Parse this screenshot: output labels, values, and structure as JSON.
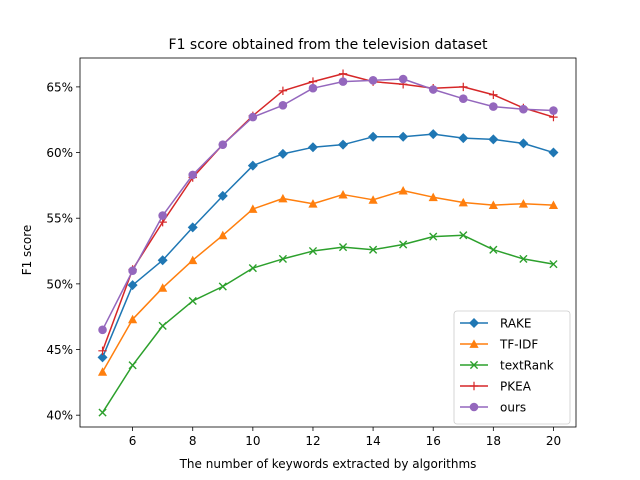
{
  "chart_data": {
    "type": "line",
    "title": "F1 score obtained from the television dataset",
    "xlabel": "The number of keywords extracted by algorithms",
    "ylabel": "F1 score",
    "x": [
      5,
      6,
      7,
      8,
      9,
      10,
      11,
      12,
      13,
      14,
      15,
      16,
      17,
      18,
      19,
      20
    ],
    "xlim": [
      4.25,
      20.75
    ],
    "ylim": [
      39.1,
      67.2
    ],
    "xticks": [
      6,
      8,
      10,
      12,
      14,
      16,
      18,
      20
    ],
    "xtick_labels": [
      "6",
      "8",
      "10",
      "12",
      "14",
      "16",
      "18",
      "20"
    ],
    "yticks": [
      40,
      45,
      50,
      55,
      60,
      65
    ],
    "ytick_labels": [
      "40%",
      "45%",
      "50%",
      "55%",
      "60%",
      "65%"
    ],
    "grid": false,
    "legend_position": "lower-right",
    "series": [
      {
        "name": "RAKE",
        "color": "#1f77b4",
        "marker": "diamond",
        "values": [
          44.4,
          49.9,
          51.8,
          54.3,
          56.7,
          59.0,
          59.9,
          60.4,
          60.6,
          61.2,
          61.2,
          61.4,
          61.1,
          61.0,
          60.7,
          60.0
        ]
      },
      {
        "name": "TF-IDF",
        "color": "#ff7f0e",
        "marker": "triangle",
        "values": [
          43.3,
          47.3,
          49.7,
          51.8,
          53.7,
          55.7,
          56.5,
          56.1,
          56.8,
          56.4,
          57.1,
          56.6,
          56.2,
          56.0,
          56.1,
          56.0
        ]
      },
      {
        "name": "textRank",
        "color": "#2ca02c",
        "marker": "x",
        "values": [
          40.2,
          43.8,
          46.8,
          48.7,
          49.8,
          51.2,
          51.9,
          52.5,
          52.8,
          52.6,
          53.0,
          53.6,
          53.7,
          52.6,
          51.9,
          51.5
        ]
      },
      {
        "name": "PKEA",
        "color": "#d62728",
        "marker": "plus",
        "values": [
          44.9,
          51.1,
          54.7,
          58.1,
          60.6,
          62.8,
          64.7,
          65.4,
          66.0,
          65.4,
          65.2,
          64.9,
          65.0,
          64.4,
          63.4,
          62.7
        ]
      },
      {
        "name": "ours",
        "color": "#9467bd",
        "marker": "circle",
        "values": [
          46.5,
          51.0,
          55.2,
          58.3,
          60.6,
          62.7,
          63.6,
          64.9,
          65.4,
          65.5,
          65.6,
          64.8,
          64.1,
          63.5,
          63.3,
          63.2
        ]
      }
    ]
  }
}
